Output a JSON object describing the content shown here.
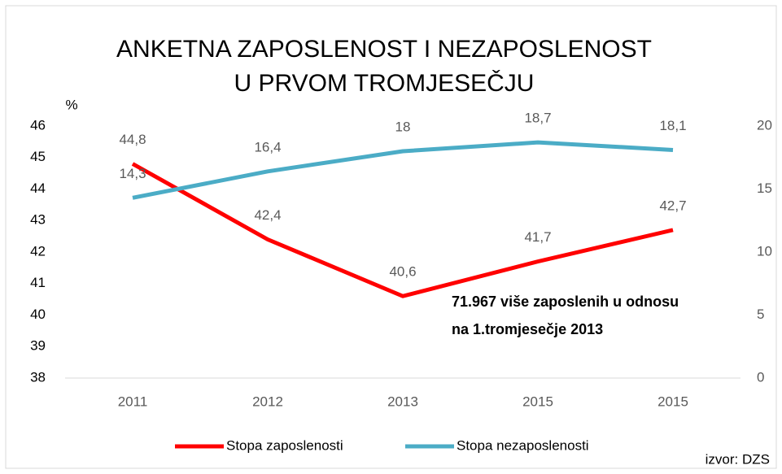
{
  "chart_data": {
    "type": "line",
    "title": [
      "ANKETNA ZAPOSLENOST I NEZAPOSLENOST",
      "U PRVOM TROMJESEČJU"
    ],
    "y_label": "%",
    "categories": [
      "2011",
      "2012",
      "2013",
      "2015",
      "2015"
    ],
    "series": [
      {
        "name": "Stopa zaposlenosti",
        "color": "#ff0000",
        "values": [
          44.8,
          42.4,
          40.6,
          41.7,
          42.7
        ],
        "value_labels": [
          "44,8",
          "42,4",
          "40,6",
          "41,7",
          "42,7"
        ]
      },
      {
        "name": "Stopa nezaposlenosti",
        "color": "#4bacc6",
        "axis": "y2",
        "values": [
          14.3,
          16.4,
          18,
          18.7,
          18.1
        ],
        "value_labels": [
          "14,3",
          "16,4",
          "18",
          "18,7",
          "18,1"
        ]
      }
    ],
    "ylim": [
      38,
      46
    ],
    "yticks": [
      38,
      39,
      40,
      41,
      42,
      43,
      44,
      45,
      46
    ],
    "y2lim": [
      0,
      20
    ],
    "y2ticks": [
      0,
      5,
      10,
      15,
      20
    ],
    "annotation": [
      "71.967 više zaposlenih u odnosu",
      "na 1.tromjesečje 2013"
    ],
    "source": "izvor: DZS",
    "legend": "bottom"
  }
}
